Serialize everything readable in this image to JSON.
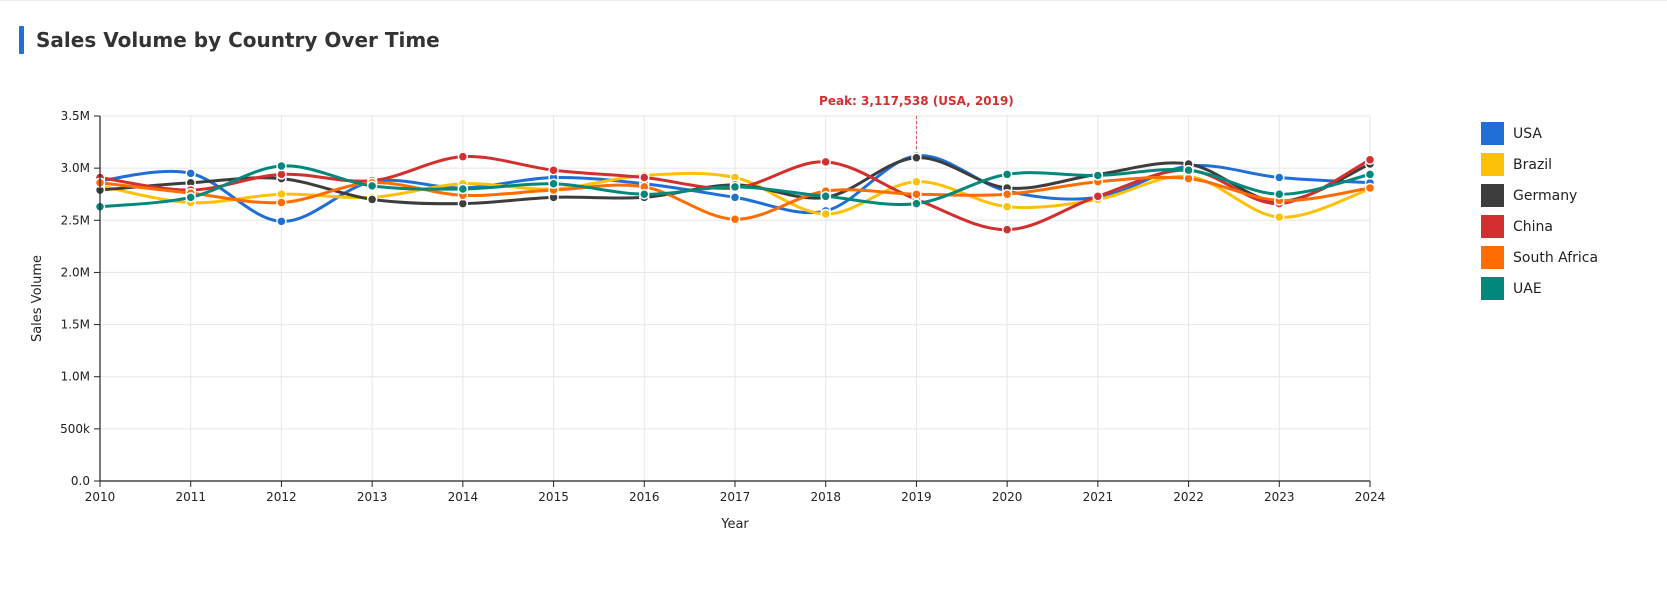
{
  "page": {
    "title": "Sales Volume by Country Over Time",
    "accent_color": "#1f6fd6"
  },
  "chart_data": {
    "type": "line",
    "title": "Sales Volume by Country Over Time",
    "xlabel": "Year",
    "ylabel": "Sales Volume",
    "x": [
      2010,
      2011,
      2012,
      2013,
      2014,
      2015,
      2016,
      2017,
      2018,
      2019,
      2020,
      2021,
      2022,
      2023,
      2024
    ],
    "x_tick_labels": [
      "2010",
      "2011",
      "2012",
      "2013",
      "2014",
      "2015",
      "2016",
      "2017",
      "2018",
      "2019",
      "2020",
      "2021",
      "2022",
      "2023",
      "2024"
    ],
    "ylim": [
      0,
      3500000
    ],
    "y_ticks": [
      0,
      500000,
      1000000,
      1500000,
      2000000,
      2500000,
      3000000,
      3500000
    ],
    "y_tick_labels": [
      "0.0",
      "500k",
      "1.0M",
      "1.5M",
      "2.0M",
      "2.5M",
      "3.0M",
      "3.5M"
    ],
    "grid": true,
    "legend_position": "right",
    "series": [
      {
        "name": "USA",
        "color": "#1f6fd6",
        "values": [
          2880000,
          2950000,
          2490000,
          2870000,
          2810000,
          2910000,
          2850000,
          2720000,
          2590000,
          3117538,
          2780000,
          2720000,
          3020000,
          2910000,
          2860000
        ]
      },
      {
        "name": "Brazil",
        "color": "#ffc107",
        "values": [
          2830000,
          2670000,
          2750000,
          2720000,
          2850000,
          2800000,
          2930000,
          2910000,
          2560000,
          2870000,
          2630000,
          2700000,
          2920000,
          2530000,
          2800000
        ]
      },
      {
        "name": "Germany",
        "color": "#3d3d3d",
        "values": [
          2790000,
          2860000,
          2900000,
          2700000,
          2660000,
          2720000,
          2720000,
          2840000,
          2720000,
          3100000,
          2810000,
          2940000,
          3040000,
          2680000,
          3040000
        ]
      },
      {
        "name": "China",
        "color": "#d32f2f",
        "values": [
          2910000,
          2790000,
          2940000,
          2880000,
          3110000,
          2980000,
          2910000,
          2810000,
          3060000,
          2700000,
          2410000,
          2730000,
          2980000,
          2660000,
          3080000
        ]
      },
      {
        "name": "South Africa",
        "color": "#ff6d00",
        "values": [
          2860000,
          2760000,
          2670000,
          2860000,
          2740000,
          2790000,
          2820000,
          2510000,
          2780000,
          2750000,
          2750000,
          2870000,
          2900000,
          2690000,
          2810000
        ]
      },
      {
        "name": "UAE",
        "color": "#00897b",
        "values": [
          2630000,
          2720000,
          3020000,
          2830000,
          2800000,
          2850000,
          2750000,
          2820000,
          2730000,
          2660000,
          2940000,
          2930000,
          2980000,
          2750000,
          2940000
        ]
      }
    ],
    "annotations": [
      {
        "text": "Peak: 3,117,538 (USA, 2019)",
        "x": 2019,
        "y": 3117538,
        "color": "#d32f2f"
      }
    ]
  }
}
